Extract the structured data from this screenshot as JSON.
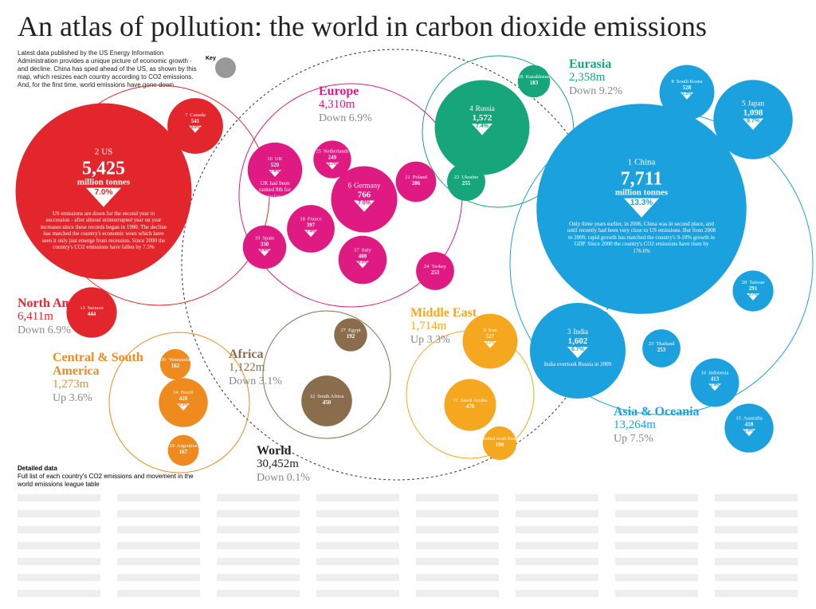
{
  "title": "An atlas of pollution: the world in carbon dioxide emissions",
  "intro": "Latest data published by the US Energy Information Administration provides a unique picture of economic growth - and decline. China has sped ahead of the US, as shown by this map, which resizes each country according to CO2 emissions. And, for the first time, world emissions have gone down",
  "key": "Key",
  "world": {
    "name": "World",
    "total": "30,452m",
    "change": "Down 0.1%"
  },
  "detail": {
    "title": "Detailed data",
    "text": "Full list of each country's CO2 emissions and movement in the world emissions league table"
  },
  "regions": [
    {
      "name": "North America",
      "total": "6,411m",
      "change": "Down 6.9%",
      "color": "#e3262b",
      "countries": [
        {
          "rank": "2",
          "name": "US",
          "value": 5425,
          "value_label": "5,425",
          "unit": "million tonnes",
          "change": "7.0%",
          "text": "US emissions are down for the second year in succession - after almost uninterrupted year on year increases since these records began in 1980. The decline has matched the country's economic woes which have seen it only just emerge from recession. Since 2000 the country's CO2 emissions have fallen by 7.5%"
        },
        {
          "rank": "7",
          "name": "Canada",
          "value": 541,
          "value_label": "541",
          "change": "9.6%"
        },
        {
          "rank": "13",
          "name": "Mexico",
          "value": 444,
          "value_label": "444"
        }
      ]
    },
    {
      "name": "Europe",
      "total": "4,310m",
      "change": "Down 6.9%",
      "color": "#df1a83",
      "countries": [
        {
          "rank": "10",
          "name": "UK",
          "value": 520,
          "value_label": "520",
          "change": "7.8%",
          "text": "UK had been ranked 8th for emissions in 2008"
        },
        {
          "rank": "6",
          "name": "Germany",
          "value": 766,
          "value_label": "766",
          "change": "7.0%"
        },
        {
          "rank": "18",
          "name": "France",
          "value": 397,
          "value_label": "397",
          "change": "7.4%"
        },
        {
          "rank": "19",
          "name": "Spain",
          "value": 330,
          "value_label": "330",
          "change": "8.4%"
        },
        {
          "rank": "17",
          "name": "Italy",
          "value": 408,
          "value_label": "408",
          "change": "9.3%"
        },
        {
          "rank": "25",
          "name": "Netherlands",
          "value": 249,
          "value_label": "249",
          "change": "5.7%"
        },
        {
          "rank": "21",
          "name": "Poland",
          "value": 286,
          "value_label": "286"
        },
        {
          "rank": "24",
          "name": "Turkey",
          "value": 253,
          "value_label": "253"
        }
      ]
    },
    {
      "name": "Eurasia",
      "total": "2,358m",
      "change": "Down 9.2%",
      "color": "#17a57b",
      "countries": [
        {
          "rank": "4",
          "name": "Russia",
          "value": 1572,
          "value_label": "1,572",
          "change": "7.4%"
        },
        {
          "rank": "22",
          "name": "Ukraine",
          "value": 255,
          "value_label": "255"
        },
        {
          "rank": "28",
          "name": "Kazakhstan",
          "value": 183,
          "value_label": "183"
        }
      ]
    },
    {
      "name": "Asia & Oceania",
      "total": "13,264m",
      "change": "Up 7.5%",
      "color": "#1ba2de",
      "countries": [
        {
          "rank": "1",
          "name": "China",
          "value": 7711,
          "value_label": "7,711",
          "unit": "million tonnes",
          "change": "13.3%",
          "text": "Only three years earlier, in 2006, China was in second place, and until recently had been very close to US emissions. But from 2008 to 2009, rapid growth has matched the country's 9-10% growth in GDP. Since 2000 the country's CO2 emissions have risen by 176.6%"
        },
        {
          "rank": "5",
          "name": "Japan",
          "value": 1098,
          "value_label": "1,098",
          "change": "9.7%"
        },
        {
          "rank": "8",
          "name": "South Korea",
          "value": 528,
          "value_label": "528",
          "change": "1.2%"
        },
        {
          "rank": "3",
          "name": "India",
          "value": 1602,
          "value_label": "1,602",
          "change": "6.7%",
          "text": "India overtook Russia in 2009"
        },
        {
          "rank": "16",
          "name": "Indonesia",
          "value": 413,
          "value_label": "413",
          "change": "2.4%"
        },
        {
          "rank": "15",
          "name": "Australia",
          "value": 418,
          "value_label": "418",
          "change": "1.6%"
        },
        {
          "rank": "23",
          "name": "Thailand",
          "value": 253,
          "value_label": "253"
        },
        {
          "rank": "20",
          "name": "Taiwan",
          "value": 291,
          "value_label": "291",
          "change": "3.7%"
        }
      ]
    },
    {
      "name": "Middle East",
      "total": "1,714m",
      "change": "Up 3.3%",
      "color": "#f4a71f",
      "countries": [
        {
          "rank": "9",
          "name": "Iran",
          "value": 527,
          "value_label": "527",
          "change": "3.2%"
        },
        {
          "rank": "11",
          "name": "Saudi Arabia",
          "value": 470,
          "value_label": "470"
        },
        {
          "rank": "26",
          "name": "United Arab Emirates",
          "value": 198,
          "value_label": "198"
        }
      ]
    },
    {
      "name": "Africa",
      "total": "1,122m",
      "change": "Down 3.1%",
      "color": "#8a6d4d",
      "countries": [
        {
          "rank": "12",
          "name": "South Africa",
          "value": 450,
          "value_label": "450"
        },
        {
          "rank": "27",
          "name": "Egypt",
          "value": 192,
          "value_label": "192"
        }
      ]
    },
    {
      "name": "Central & South America",
      "total": "1,273m",
      "change": "Up 3.6%",
      "color": "#ef8a1e",
      "countries": [
        {
          "rank": "14",
          "name": "Brazil",
          "value": 420,
          "value_label": "420",
          "change": "9.3%"
        },
        {
          "rank": "29",
          "name": "Argentina",
          "value": 167,
          "value_label": "167"
        },
        {
          "rank": "30",
          "name": "Venezuela",
          "value": 162,
          "value_label": "162"
        }
      ]
    }
  ]
}
